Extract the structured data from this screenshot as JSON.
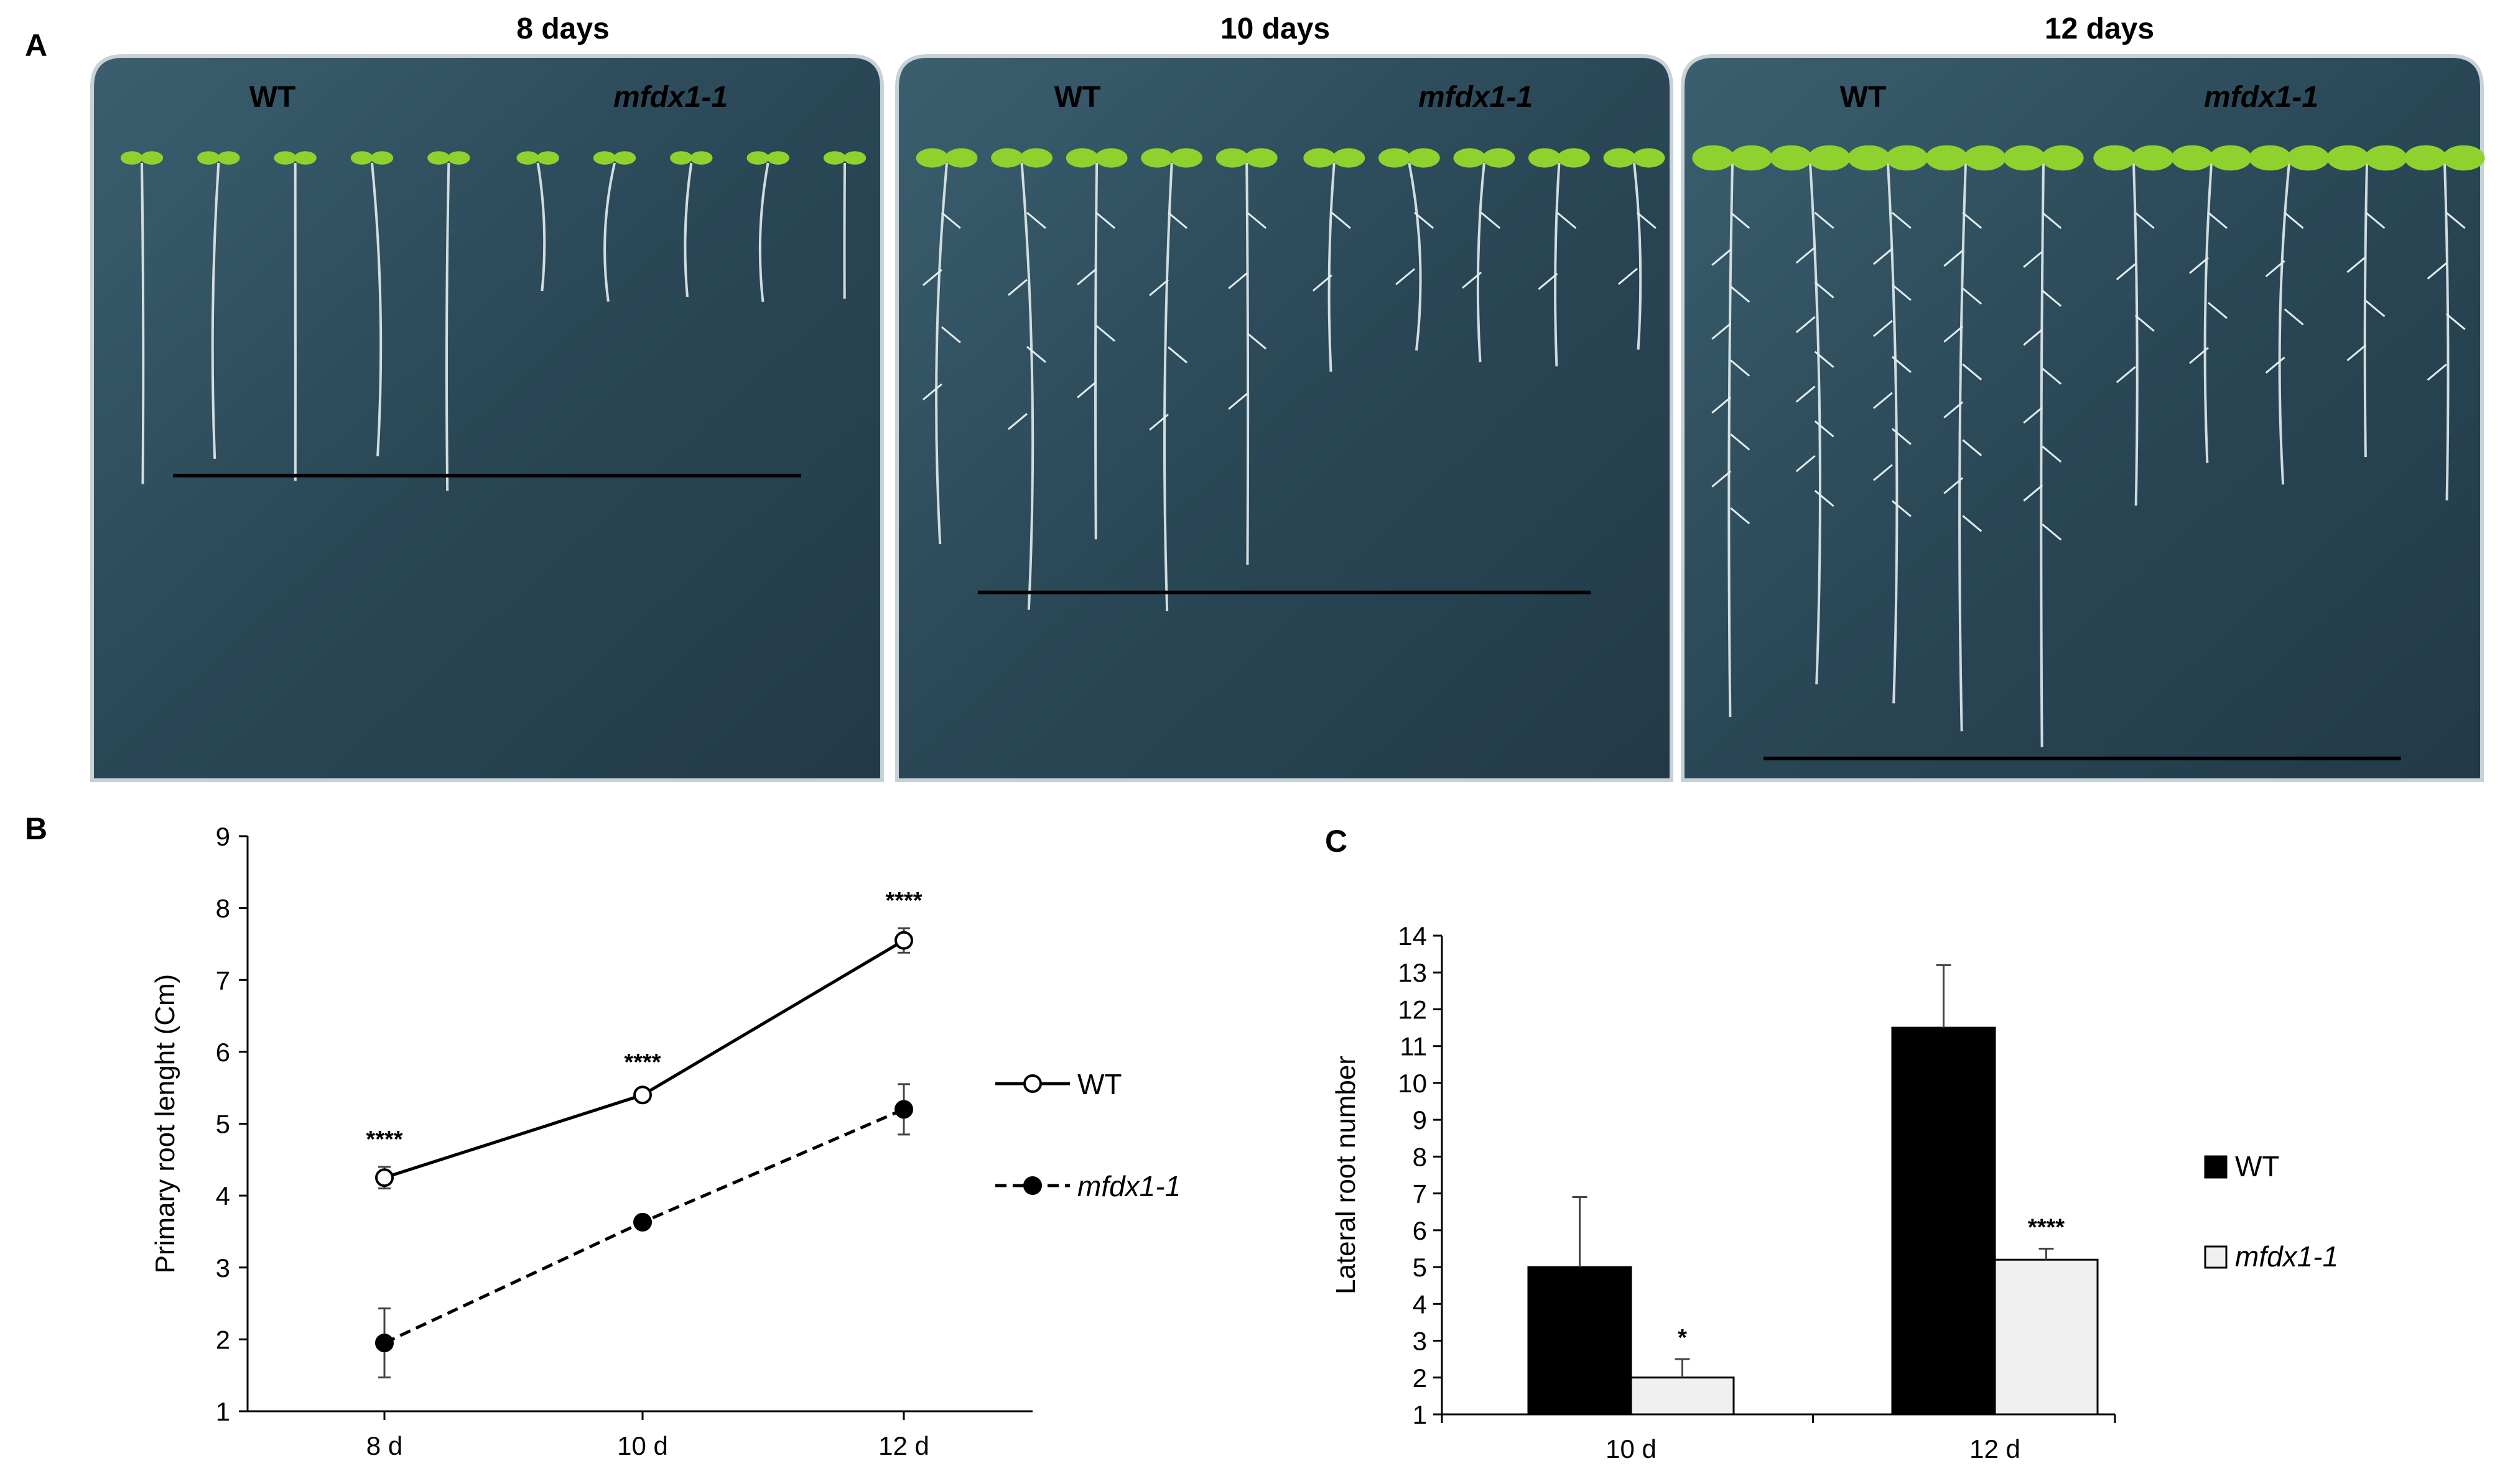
{
  "panels": {
    "A": {
      "letter": "A",
      "plates": [
        {
          "title": "8 days",
          "wt_label": "WT",
          "mut_label": "mfdx1-1",
          "root_length": 4.25
        },
        {
          "title": "10 days",
          "wt_label": "WT",
          "mut_label": "mfdx1-1",
          "root_length": 5.4
        },
        {
          "title": "12 days",
          "wt_label": "WT",
          "mut_label": "mfdx1-1",
          "root_length": 7.55
        }
      ],
      "colors": {
        "plate": "#2f4e5e",
        "plate_dark": "#1c2e38",
        "root": "#e4ecec",
        "leaf": "#8fd22e"
      }
    },
    "B": {
      "letter": "B"
    },
    "C": {
      "letter": "C"
    }
  },
  "chart_data": [
    {
      "panel": "B",
      "type": "line",
      "categories": [
        "8 d",
        "10 d",
        "12 d"
      ],
      "ylabel": "Primary root lenght (Cm)",
      "xlabel": "",
      "ylim": [
        1,
        9
      ],
      "yticks": [
        1,
        2,
        3,
        4,
        5,
        6,
        7,
        8,
        9
      ],
      "grid": false,
      "legend_position": "right",
      "series": [
        {
          "name": "WT",
          "values": [
            4.25,
            5.4,
            7.55
          ],
          "errors": [
            0.15,
            0.07,
            0.17
          ],
          "marker": "open-circle",
          "line": "solid"
        },
        {
          "name": "mfdx1-1",
          "values": [
            1.95,
            3.63,
            5.2
          ],
          "errors": [
            0.48,
            0.04,
            0.35
          ],
          "marker": "filled-circle",
          "line": "dashed"
        }
      ],
      "annotations": [
        "****",
        "****",
        "****"
      ]
    },
    {
      "panel": "C",
      "type": "bar",
      "categories": [
        "10 d",
        "12 d"
      ],
      "ylabel": "Lateral root number",
      "xlabel": "",
      "ylim": [
        1,
        14
      ],
      "yticks": [
        1,
        2,
        3,
        4,
        5,
        6,
        7,
        8,
        9,
        10,
        11,
        12,
        13,
        14
      ],
      "grid": false,
      "legend_position": "right",
      "series": [
        {
          "name": "WT",
          "values": [
            5.0,
            11.5
          ],
          "errors": [
            1.9,
            1.7
          ],
          "color": "#000000"
        },
        {
          "name": "mfdx1-1",
          "values": [
            2.0,
            5.2
          ],
          "errors": [
            0.5,
            0.3
          ],
          "color": "#f0f0f0"
        }
      ],
      "annotations": [
        "*",
        "****"
      ]
    }
  ]
}
